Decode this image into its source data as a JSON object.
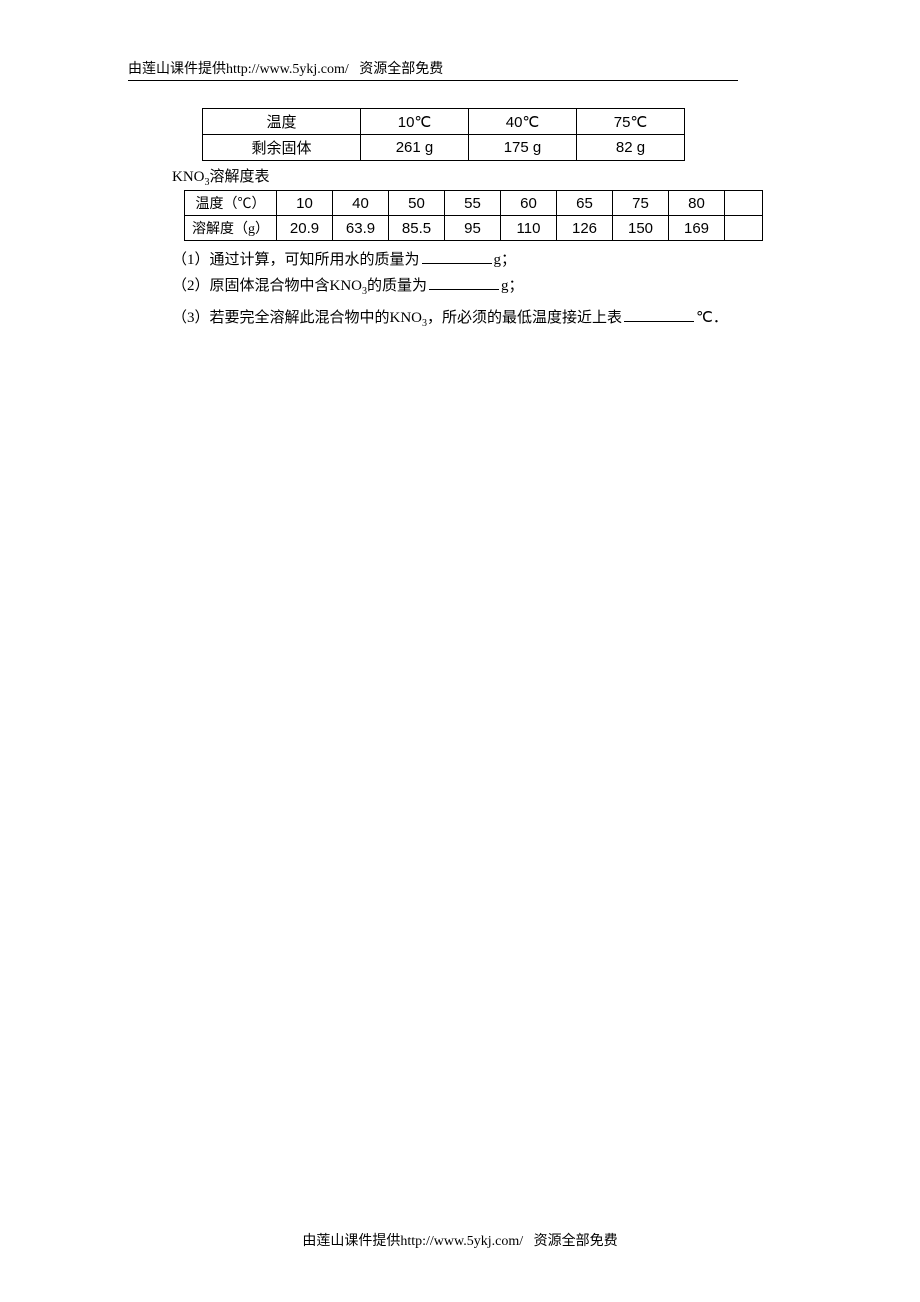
{
  "header": {
    "prefix": "由莲山课件提供",
    "url": "http://www.5ykj.com/",
    "suffix": "资源全部免费"
  },
  "footer": {
    "prefix": "由莲山课件提供",
    "url": "http://www.5ykj.com/",
    "suffix": "资源全部免费"
  },
  "table1": {
    "row1_label": "温度",
    "row1_c1": "10℃",
    "row1_c2": "40℃",
    "row1_c3": "75℃",
    "row2_label": "剩余固体",
    "row2_c1": "261 g",
    "row2_c2": "175 g",
    "row2_c3": "82 g"
  },
  "caption": {
    "pre": "KNO",
    "sub": "3",
    "post": "溶解度表"
  },
  "table2": {
    "row1_label": "温度（℃）",
    "row1": [
      "10",
      "40",
      "50",
      "55",
      "60",
      "65",
      "75",
      "80"
    ],
    "row2_label": "溶解度（g）",
    "row2": [
      "20.9",
      "63.9",
      "85.5",
      "95",
      "110",
      "126",
      "150",
      "169"
    ]
  },
  "q1": {
    "pre": "（1）通过计算，可知所用水的质量为",
    "post": "g；"
  },
  "q2": {
    "pre": "（2）原固体混合物中含",
    "kno_pre": "KNO",
    "kno_sub": "3",
    "mid": "的质量为",
    "post": "g；"
  },
  "q3": {
    "pre": "（3）若要完全溶解此混合物中的",
    "kno_pre": "KNO",
    "kno_sub": "3",
    "mid": "，所必须的最低温度接近上表",
    "post": "℃．"
  }
}
